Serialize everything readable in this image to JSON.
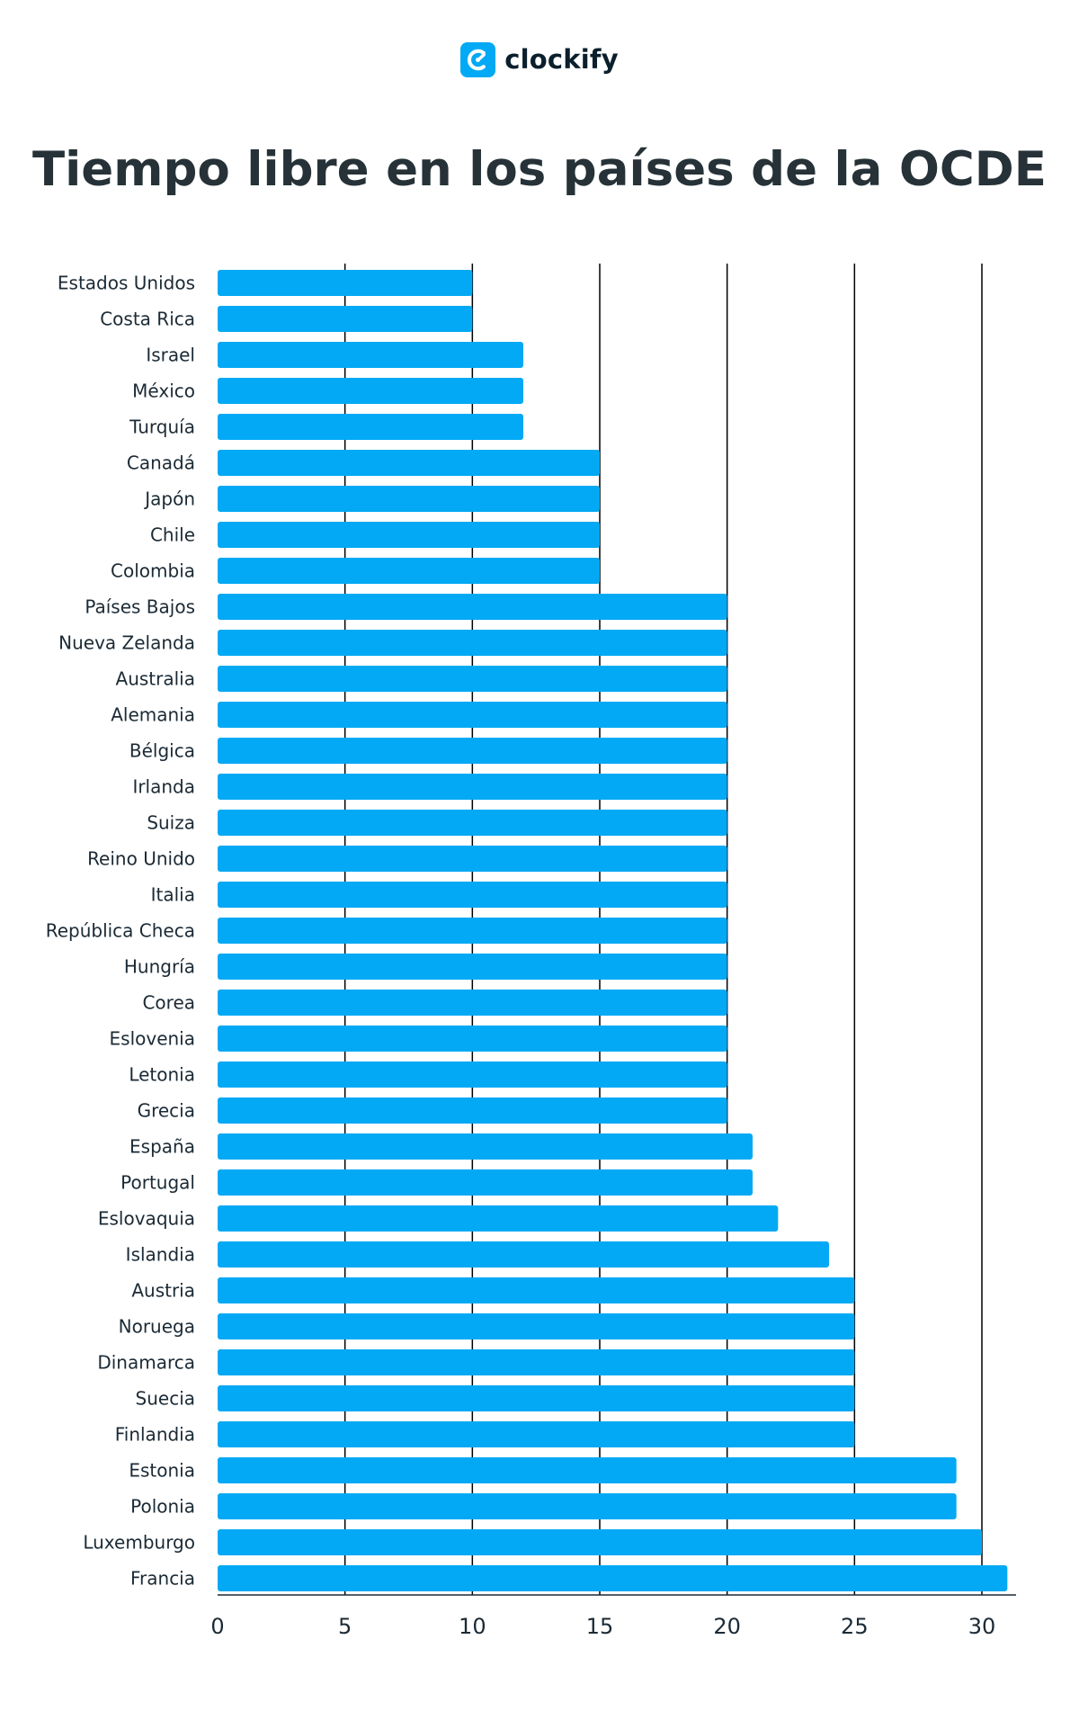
{
  "brand": {
    "name": "clockify",
    "icon": "clockify-logo-icon",
    "color": "#03A9F4"
  },
  "chart_data": {
    "type": "bar",
    "orientation": "horizontal",
    "title": "Tiempo libre en los países de la OCDE",
    "xlabel": "",
    "ylabel": "",
    "xlim": [
      0,
      31.5
    ],
    "xticks": [
      0,
      5,
      10,
      15,
      20,
      25,
      30
    ],
    "grid": true,
    "bar_color": "#03A9F4",
    "grid_color": "#000000",
    "categories": [
      "Estados Unidos",
      "Costa Rica",
      "Israel",
      "México",
      "Turquía",
      "Canadá",
      "Japón",
      "Chile",
      "Colombia",
      "Países Bajos",
      "Nueva Zelanda",
      "Australia",
      "Alemania",
      "Bélgica",
      "Irlanda",
      "Suiza",
      "Reino Unido",
      "Italia",
      "República Checa",
      "Hungría",
      "Corea",
      "Eslovenia",
      "Letonia",
      "Grecia",
      "España",
      "Portugal",
      "Eslovaquia",
      "Islandia",
      "Austria",
      "Noruega",
      "Dinamarca",
      "Suecia",
      "Finlandia",
      "Estonia",
      "Polonia",
      "Luxemburgo",
      "Francia"
    ],
    "values": [
      10,
      10,
      12,
      12,
      12,
      15,
      15,
      15,
      15,
      20,
      20,
      20,
      20,
      20,
      20,
      20,
      20,
      20,
      20,
      20,
      20,
      20,
      20,
      20,
      21,
      21,
      22,
      24,
      25,
      25,
      25,
      25,
      25,
      29,
      29,
      30,
      31
    ]
  }
}
